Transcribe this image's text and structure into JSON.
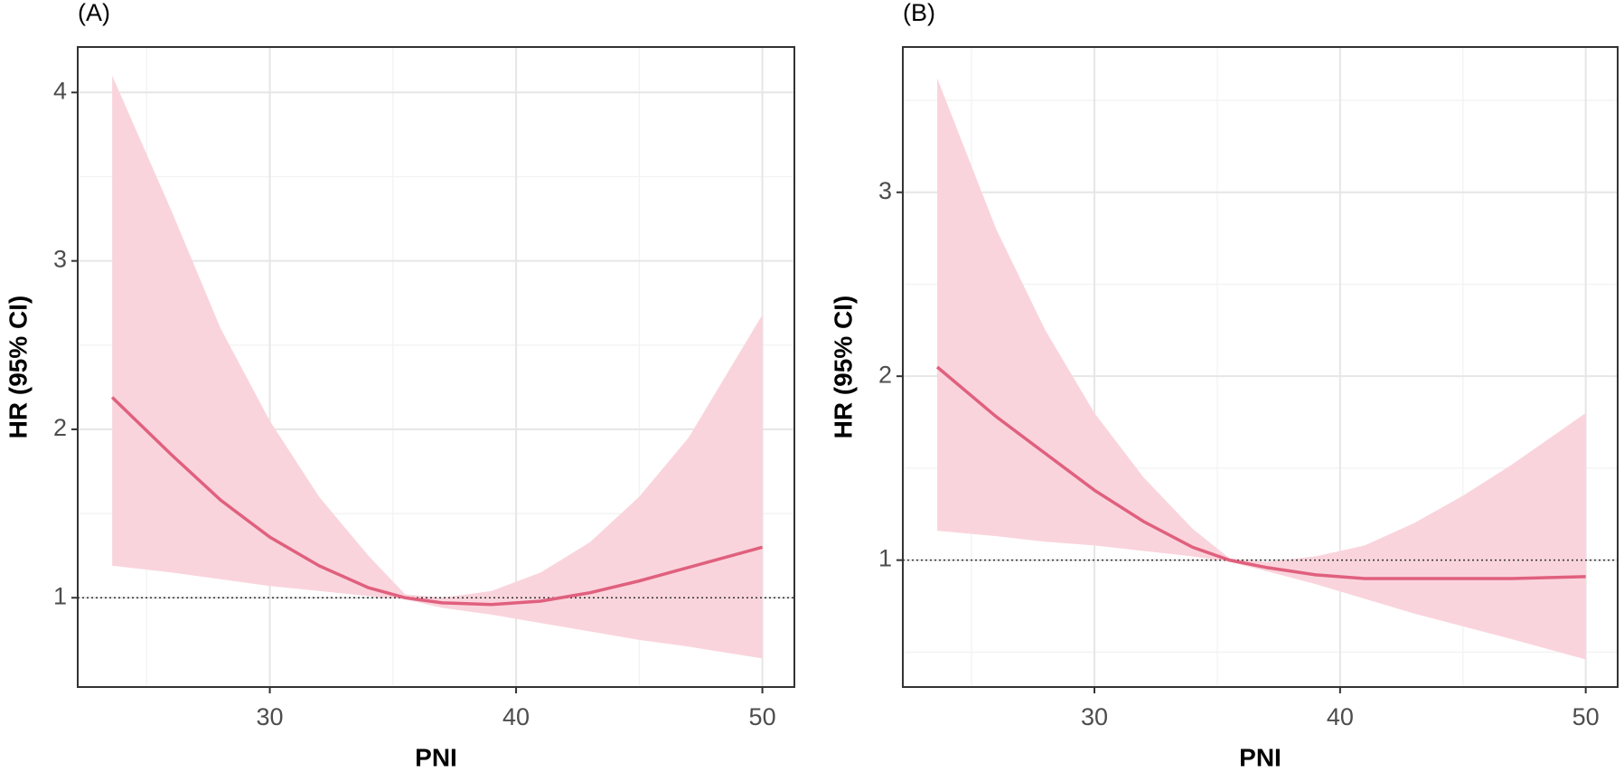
{
  "chart_data": [
    {
      "type": "line",
      "title": "(A)",
      "xlabel": "PNI",
      "ylabel": "HR (95% CI)",
      "x": [
        23.6,
        26,
        28,
        30,
        32,
        34,
        35.5,
        37,
        39,
        41,
        43,
        45,
        47,
        50
      ],
      "series": [
        {
          "color": "#e0607e",
          "band_color": "#fad4dc",
          "values": [
            2.19,
            1.85,
            1.58,
            1.36,
            1.19,
            1.06,
            1.0,
            0.97,
            0.96,
            0.98,
            1.03,
            1.1,
            1.18,
            1.3
          ],
          "lower": [
            1.19,
            1.15,
            1.11,
            1.07,
            1.04,
            1.01,
            0.99,
            0.94,
            0.9,
            0.85,
            0.8,
            0.75,
            0.71,
            0.64
          ],
          "upper": [
            4.1,
            3.3,
            2.6,
            2.05,
            1.6,
            1.25,
            1.02,
            1.0,
            1.04,
            1.15,
            1.33,
            1.6,
            1.95,
            2.68
          ]
        }
      ],
      "xlim": [
        22.2,
        51.3
      ],
      "ylim": [
        0.47,
        4.27
      ],
      "xticks": [
        30,
        40,
        50
      ],
      "yticks": [
        1,
        2,
        3,
        4
      ],
      "x_minor_ticks": [
        25,
        35,
        45
      ],
      "y_minor_ticks": [
        1.5,
        2.5,
        3.5
      ],
      "hline": 1,
      "grid": true
    },
    {
      "type": "line",
      "title": "(B)",
      "xlabel": "PNI",
      "ylabel": "HR (95% CI)",
      "x": [
        23.6,
        26,
        28,
        30,
        32,
        34,
        35.5,
        37,
        39,
        41,
        43,
        45,
        47,
        50
      ],
      "series": [
        {
          "color": "#e0607e",
          "band_color": "#fad4dc",
          "values": [
            2.05,
            1.78,
            1.58,
            1.38,
            1.21,
            1.07,
            1.0,
            0.96,
            0.92,
            0.9,
            0.9,
            0.9,
            0.9,
            0.91
          ],
          "lower": [
            1.16,
            1.13,
            1.1,
            1.08,
            1.05,
            1.02,
            0.99,
            0.94,
            0.87,
            0.79,
            0.71,
            0.64,
            0.57,
            0.46
          ],
          "upper": [
            3.62,
            2.8,
            2.25,
            1.8,
            1.45,
            1.17,
            1.01,
            0.99,
            1.02,
            1.08,
            1.2,
            1.35,
            1.52,
            1.8
          ]
        }
      ],
      "xlim": [
        22.2,
        51.3
      ],
      "ylim": [
        0.31,
        3.79
      ],
      "xticks": [
        30,
        40,
        50
      ],
      "yticks": [
        1,
        2,
        3
      ],
      "x_minor_ticks": [
        25,
        35,
        45
      ],
      "y_minor_ticks": [
        0.5,
        1.5,
        2.5,
        3.5
      ],
      "hline": 1,
      "grid": true
    }
  ]
}
